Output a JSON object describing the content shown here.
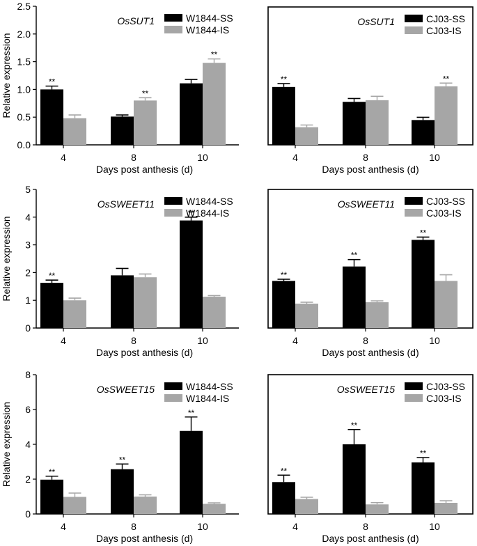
{
  "figure": {
    "colors": {
      "ss": "#000000",
      "is": "#a6a6a6",
      "axis": "#000000"
    }
  },
  "chart_data": [
    {
      "type": "bar",
      "gene": "OsSUT1",
      "title": "OsSUT1",
      "categories": [
        "4",
        "8",
        "10"
      ],
      "xlabel": "Days post anthesis (d)",
      "ylabel": "Relative expression",
      "ylim": [
        0,
        2.5
      ],
      "yticks": [
        0,
        0.5,
        1.0,
        1.5,
        2.0,
        2.5
      ],
      "ytick_labels": [
        "0.0",
        "0.5",
        "1.0",
        "1.5",
        "2.0",
        "2.5"
      ],
      "legend_location": "top-right",
      "grid": false,
      "series": [
        {
          "name": "W1844-SS",
          "values": [
            1.0,
            0.51,
            1.11
          ],
          "errors": [
            0.06,
            0.03,
            0.07
          ],
          "significance": [
            "**",
            "",
            ""
          ]
        },
        {
          "name": "W1844-IS",
          "values": [
            0.48,
            0.8,
            1.48
          ],
          "errors": [
            0.06,
            0.05,
            0.07
          ],
          "significance": [
            "",
            "**",
            "**"
          ]
        }
      ]
    },
    {
      "type": "bar",
      "gene": "OsSUT1",
      "title": "OsSUT1",
      "categories": [
        "4",
        "8",
        "10"
      ],
      "xlabel": "Days post anthesis (d)",
      "ylabel": "",
      "ylim": [
        0,
        2.5
      ],
      "yticks": [],
      "ytick_labels": [],
      "legend_location": "top-right",
      "grid": false,
      "series": [
        {
          "name": "CJ03-SS",
          "values": [
            1.05,
            0.78,
            0.45
          ],
          "errors": [
            0.06,
            0.06,
            0.05
          ],
          "significance": [
            "**",
            "",
            ""
          ]
        },
        {
          "name": "CJ03-IS",
          "values": [
            0.32,
            0.81,
            1.06
          ],
          "errors": [
            0.04,
            0.07,
            0.06
          ],
          "significance": [
            "",
            "",
            "**"
          ]
        }
      ]
    },
    {
      "type": "bar",
      "gene": "OsSWEET11",
      "title": "OsSWEET11",
      "categories": [
        "4",
        "8",
        "10"
      ],
      "xlabel": "Days post anthesis (d)",
      "ylabel": "Relative expression",
      "ylim": [
        0,
        5
      ],
      "yticks": [
        0,
        1,
        2,
        3,
        4,
        5
      ],
      "ytick_labels": [
        "0",
        "1",
        "2",
        "3",
        "4",
        "5"
      ],
      "legend_location": "top-right",
      "grid": false,
      "series": [
        {
          "name": "W1844-SS",
          "values": [
            1.63,
            1.9,
            3.88
          ],
          "errors": [
            0.1,
            0.25,
            0.12
          ],
          "significance": [
            "**",
            "",
            "**"
          ]
        },
        {
          "name": "W1844-IS",
          "values": [
            1.0,
            1.83,
            1.13
          ],
          "errors": [
            0.08,
            0.12,
            0.04
          ],
          "significance": [
            "",
            "",
            ""
          ]
        }
      ]
    },
    {
      "type": "bar",
      "gene": "OsSWEET11",
      "title": "OsSWEET11",
      "categories": [
        "4",
        "8",
        "10"
      ],
      "xlabel": "Days post anthesis (d)",
      "ylabel": "",
      "ylim": [
        0,
        5
      ],
      "yticks": [],
      "ytick_labels": [],
      "legend_location": "top-right",
      "grid": false,
      "series": [
        {
          "name": "CJ03-SS",
          "values": [
            1.7,
            2.22,
            3.18
          ],
          "errors": [
            0.06,
            0.25,
            0.1
          ],
          "significance": [
            "**",
            "**",
            "**"
          ]
        },
        {
          "name": "CJ03-IS",
          "values": [
            0.88,
            0.93,
            1.7
          ],
          "errors": [
            0.05,
            0.05,
            0.22
          ],
          "significance": [
            "",
            "",
            ""
          ]
        }
      ]
    },
    {
      "type": "bar",
      "gene": "OsSWEET15",
      "title": "OsSWEET15",
      "categories": [
        "4",
        "8",
        "10"
      ],
      "xlabel": "Days post anthesis (d)",
      "ylabel": "Relative expression",
      "ylim": [
        0,
        8
      ],
      "yticks": [
        0,
        2,
        4,
        6,
        8
      ],
      "ytick_labels": [
        "0",
        "2",
        "4",
        "6",
        "8"
      ],
      "legend_location": "top-right",
      "grid": false,
      "series": [
        {
          "name": "W1844-SS",
          "values": [
            1.97,
            2.57,
            4.77
          ],
          "errors": [
            0.2,
            0.3,
            0.8
          ],
          "significance": [
            "**",
            "**",
            "**"
          ]
        },
        {
          "name": "W1844-IS",
          "values": [
            0.98,
            1.0,
            0.58
          ],
          "errors": [
            0.22,
            0.1,
            0.06
          ],
          "significance": [
            "",
            "",
            ""
          ]
        }
      ]
    },
    {
      "type": "bar",
      "gene": "OsSWEET15",
      "title": "OsSWEET15",
      "categories": [
        "4",
        "8",
        "10"
      ],
      "xlabel": "Days post anthesis (d)",
      "ylabel": "",
      "ylim": [
        0,
        8
      ],
      "yticks": [],
      "ytick_labels": [],
      "legend_location": "top-right",
      "grid": false,
      "series": [
        {
          "name": "CJ03-SS",
          "values": [
            1.83,
            4.0,
            2.96
          ],
          "errors": [
            0.4,
            0.85,
            0.28
          ],
          "significance": [
            "**",
            "**",
            "**"
          ]
        },
        {
          "name": "CJ03-IS",
          "values": [
            0.86,
            0.55,
            0.64
          ],
          "errors": [
            0.1,
            0.1,
            0.12
          ],
          "significance": [
            "",
            "",
            ""
          ]
        }
      ]
    }
  ]
}
